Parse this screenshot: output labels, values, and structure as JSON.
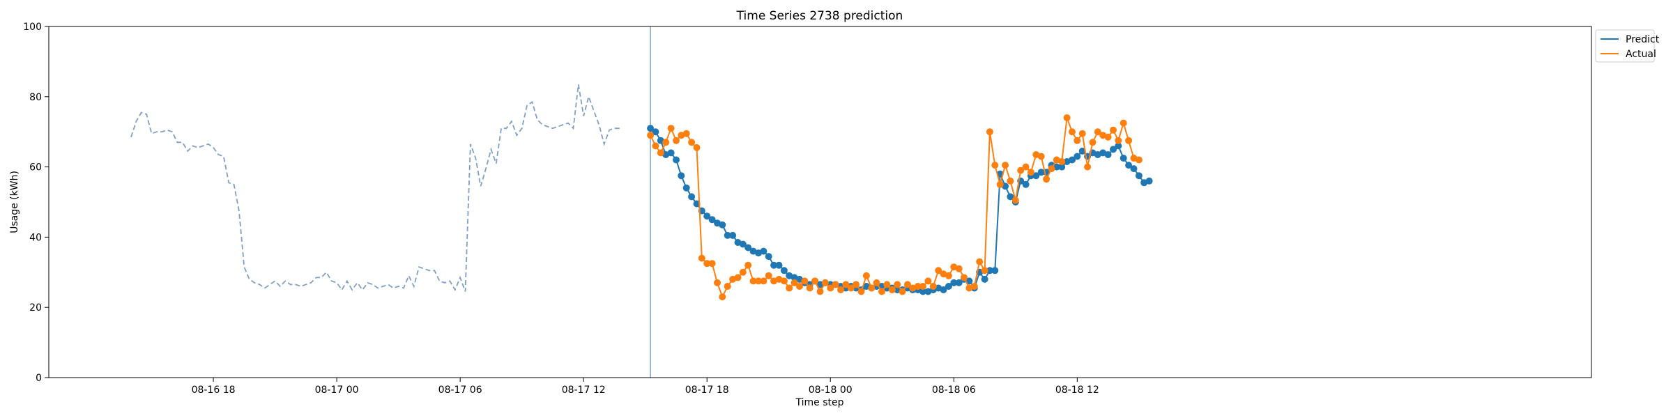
{
  "chart_data": {
    "type": "line",
    "title": "Time Series 2738 prediction",
    "xlabel": "Time step",
    "ylabel": "Usage (kWh)",
    "ylim": [
      0,
      100
    ],
    "yticks": [
      0,
      20,
      40,
      60,
      80,
      100
    ],
    "x_unit": "hours",
    "xlim": [
      -8.0,
      67.0
    ],
    "xticks": [
      {
        "x": 0,
        "label": "08-16 18"
      },
      {
        "x": 6,
        "label": "08-17 00"
      },
      {
        "x": 12,
        "label": "08-17 06"
      },
      {
        "x": 18,
        "label": "08-17 12"
      },
      {
        "x": 24,
        "label": "08-17 18"
      },
      {
        "x": 30,
        "label": "08-18 00"
      },
      {
        "x": 36,
        "label": "08-18 06"
      },
      {
        "x": 42,
        "label": "08-18 12"
      }
    ],
    "forecast_start": 21.25,
    "legend_position": "upper-right-outside",
    "history": {
      "x_start": -4.0,
      "step": 0.25,
      "color": "#7f9fc4",
      "values": [
        68.5,
        73,
        75.5,
        75,
        69.5,
        70,
        70,
        70.5,
        70,
        67,
        67,
        64.5,
        66,
        65.5,
        66,
        66.5,
        65.5,
        63.5,
        63,
        55.5,
        55,
        47.5,
        31.5,
        28,
        27,
        26.5,
        25.5,
        26.5,
        27.5,
        26,
        27.5,
        26.5,
        26.5,
        26,
        26.5,
        27,
        28.5,
        28.5,
        30,
        27.5,
        27,
        25,
        27.5,
        25,
        27,
        25,
        27,
        26.5,
        25.5,
        26,
        26.5,
        25.5,
        26,
        25.5,
        29,
        26,
        31.5,
        31,
        30.5,
        30.5,
        27.5,
        27,
        27.5,
        25,
        28.5,
        24.5,
        66.5,
        62.5,
        54.5,
        59.5,
        65,
        61,
        71,
        71,
        73,
        69,
        71,
        77.5,
        78.5,
        73.5,
        72,
        71.5,
        71,
        71.5,
        72,
        72.5,
        71,
        83.5,
        74.5,
        80,
        76,
        72,
        66.5,
        70.5,
        71,
        71
      ]
    },
    "series": [
      {
        "name": "Predict",
        "color": "#1f77b4",
        "x_start": 21.25,
        "step": 0.25,
        "values": [
          71,
          70,
          67.5,
          63.5,
          64,
          62,
          57.5,
          54,
          51.5,
          49.5,
          47.5,
          46,
          45,
          44,
          43.5,
          40.5,
          40.5,
          38.5,
          38,
          37,
          36,
          35.5,
          36,
          34.5,
          32,
          32,
          30.5,
          29,
          28.5,
          28,
          27,
          26.5,
          27.5,
          26.5,
          27,
          26.5,
          26.5,
          26,
          25.5,
          26,
          25.5,
          25,
          26,
          25.5,
          26,
          26,
          25.5,
          25.5,
          25,
          25,
          25.5,
          25,
          25,
          24.5,
          24.5,
          25,
          25.5,
          25,
          26,
          27,
          27,
          28,
          27.5,
          25.5,
          30,
          28,
          30.5,
          30.5,
          58,
          54.5,
          51.5,
          50,
          56,
          55,
          57.5,
          57.5,
          58.5,
          58.5,
          60.5,
          60,
          60,
          61.5,
          62,
          63,
          64.5,
          63,
          64,
          63.5,
          64,
          63.5,
          65,
          66,
          62.5,
          60.5,
          59.5,
          57.5,
          55.5,
          56
        ]
      },
      {
        "name": "Actual",
        "color": "#ff7f0e",
        "x_start": 21.25,
        "step": 0.25,
        "values": [
          69,
          66,
          64,
          67,
          71,
          67.5,
          69,
          69.5,
          67,
          65.5,
          34,
          32.5,
          32.5,
          27,
          23,
          26,
          28,
          28.5,
          30,
          32,
          27.5,
          27.5,
          27.5,
          29,
          27.5,
          28,
          27.5,
          25.5,
          27,
          26,
          27.5,
          25.5,
          27.5,
          24.5,
          27,
          25.5,
          26.5,
          25,
          26.5,
          25.5,
          26.5,
          24.5,
          29,
          25.5,
          27,
          24.5,
          26.5,
          25,
          26.5,
          24.5,
          26.5,
          25.5,
          26,
          26,
          27.5,
          26,
          30.5,
          29.5,
          29,
          31.5,
          31,
          28.5,
          25.5,
          26,
          33,
          30.5,
          70,
          60.5,
          55,
          60.5,
          56,
          50.5,
          59,
          60,
          58.5,
          63.5,
          63,
          56.5,
          59.5,
          62,
          61.5,
          74,
          70,
          67.5,
          69.5,
          60,
          67,
          70,
          69,
          68.5,
          70.5,
          67.5,
          72.5,
          67.5,
          62.5,
          62
        ]
      }
    ]
  }
}
